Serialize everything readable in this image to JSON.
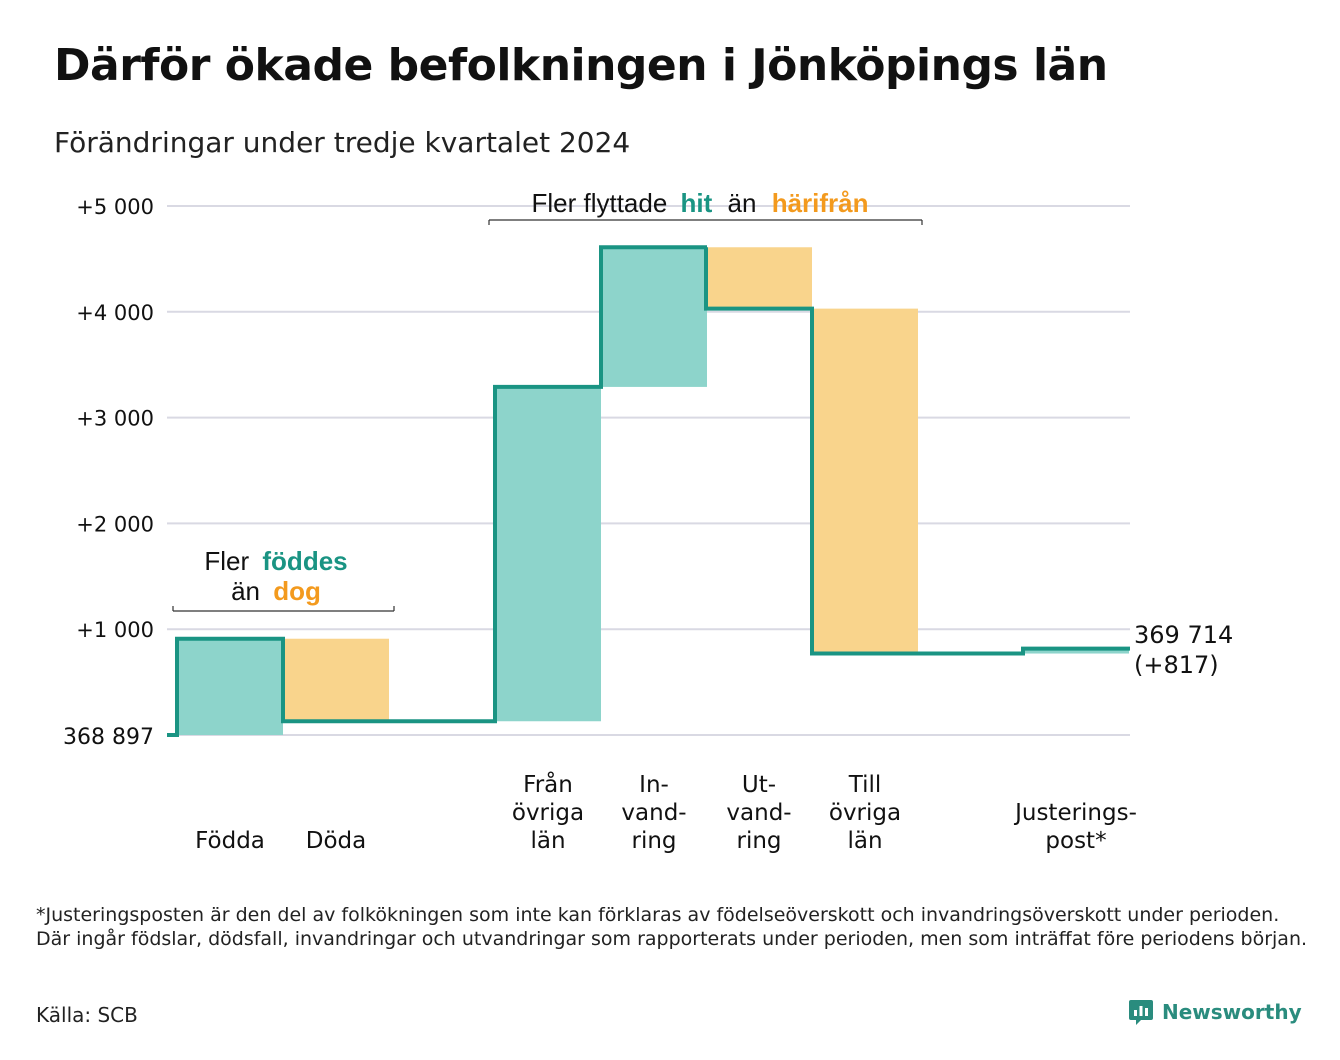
{
  "title": "Därför ökade befolkningen i Jönköpings län",
  "subtitle": "Förändringar under tredje kvartalet 2024",
  "colors": {
    "increase": "#8dd4cb",
    "decrease": "#f9d48c",
    "line": "#1a9483",
    "grid": "#d9d9e3",
    "text_green": "#1a9483",
    "text_orange": "#f39a1e"
  },
  "annotations": {
    "births": {
      "line1": "Fler",
      "highlight1": "föddes",
      "line2": "än",
      "highlight2": "dog"
    },
    "migration": {
      "prefix": "Fler flyttade",
      "highlight1": "hit",
      "middle": "än",
      "highlight2": "härifrån"
    }
  },
  "end_label": {
    "total": "369 714",
    "change": "(+817)"
  },
  "chart_data": {
    "type": "waterfall",
    "start_value": 368897,
    "end_value": 369714,
    "net_change": 817,
    "y_axis": {
      "min_label": "368 897",
      "ticks": [
        {
          "value": 1000,
          "label": "+1 000"
        },
        {
          "value": 2000,
          "label": "+2 000"
        },
        {
          "value": 3000,
          "label": "+3 000"
        },
        {
          "value": 4000,
          "label": "+4 000"
        },
        {
          "value": 5000,
          "label": "+5 000"
        }
      ],
      "ylim": [
        0,
        5000
      ]
    },
    "grid": true,
    "categories": [
      {
        "label_lines": [
          "Födda"
        ],
        "change": 910,
        "direction": "increase"
      },
      {
        "label_lines": [
          "Döda"
        ],
        "change": -780,
        "direction": "decrease"
      },
      {
        "label_lines": [
          "Från",
          "övriga",
          "län"
        ],
        "change": 3160,
        "direction": "increase"
      },
      {
        "label_lines": [
          "In-",
          "vand-",
          "ring"
        ],
        "change": 1320,
        "direction": "increase"
      },
      {
        "label_lines": [
          "Ut-",
          "vand-",
          "ring"
        ],
        "change": -580,
        "direction": "decrease"
      },
      {
        "label_lines": [
          "Till",
          "övriga",
          "län"
        ],
        "change": -3260,
        "direction": "decrease"
      },
      {
        "label_lines": [
          "Justerings-",
          "post*"
        ],
        "change": 47,
        "direction": "increase"
      }
    ]
  },
  "footnote": "*Justeringsposten är den del av folkökningen som inte kan förklaras av födelseöverskott och invandringsöverskott under perioden. Där ingår födslar, dödsfall, invandringar och utvandringar som rapporterats under perioden, men som inträffat före periodens början.",
  "source": "Källa: SCB",
  "brand": "Newsworthy"
}
